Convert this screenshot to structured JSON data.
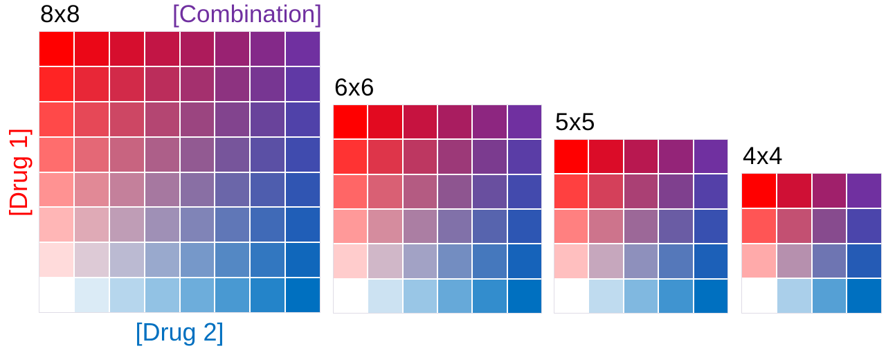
{
  "labels": {
    "combination": "[Combination]",
    "drug1": "[Drug 1]",
    "drug2": "[Drug 2]"
  },
  "colors": {
    "title_text": "#000000",
    "combination_label": "#7030A0",
    "drug1_label": "#FF0000",
    "drug2_label": "#0070C0",
    "corner_bottom_left": "#FFFFFF",
    "corner_top_left": "#FF0000",
    "corner_bottom_right": "#0070C0",
    "corner_top_right": "#7030A0",
    "gridline": "#FFFFFF",
    "grid_border": "#DFDCE6",
    "background": "#FFFFFF"
  },
  "grids": [
    {
      "label": "8x8",
      "rows": 8,
      "cols": 8
    },
    {
      "label": "6x6",
      "rows": 6,
      "cols": 6
    },
    {
      "label": "5x5",
      "rows": 5,
      "cols": 5
    },
    {
      "label": "4x4",
      "rows": 4,
      "cols": 4
    }
  ]
}
